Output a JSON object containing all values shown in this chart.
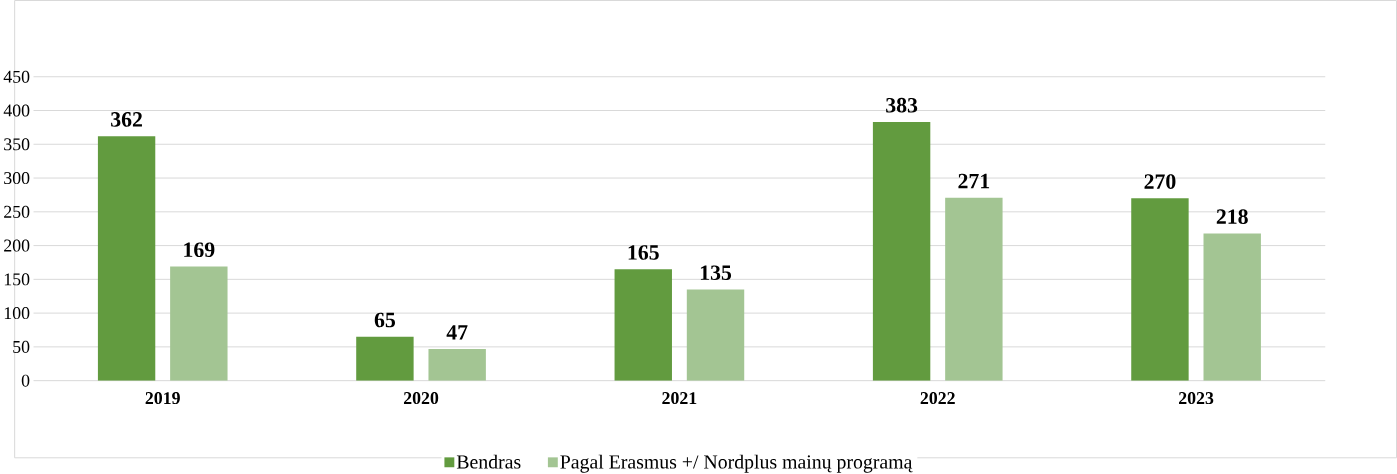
{
  "chart_data": {
    "type": "bar",
    "categories": [
      "2019",
      "2020",
      "2021",
      "2022",
      "2023"
    ],
    "series": [
      {
        "name": "Bendras",
        "color": "#629b3f",
        "values": [
          362,
          65,
          165,
          383,
          270
        ]
      },
      {
        "name": "Pagal Erasmus +/ Nordplus mainų programą",
        "color": "#a3c593",
        "values": [
          169,
          47,
          135,
          271,
          218
        ]
      }
    ],
    "ylim": [
      0,
      450
    ],
    "yticks": [
      0,
      50,
      100,
      150,
      200,
      250,
      300,
      350,
      400,
      450
    ],
    "grid": "y",
    "legend": "bottom",
    "data_labels": true
  }
}
